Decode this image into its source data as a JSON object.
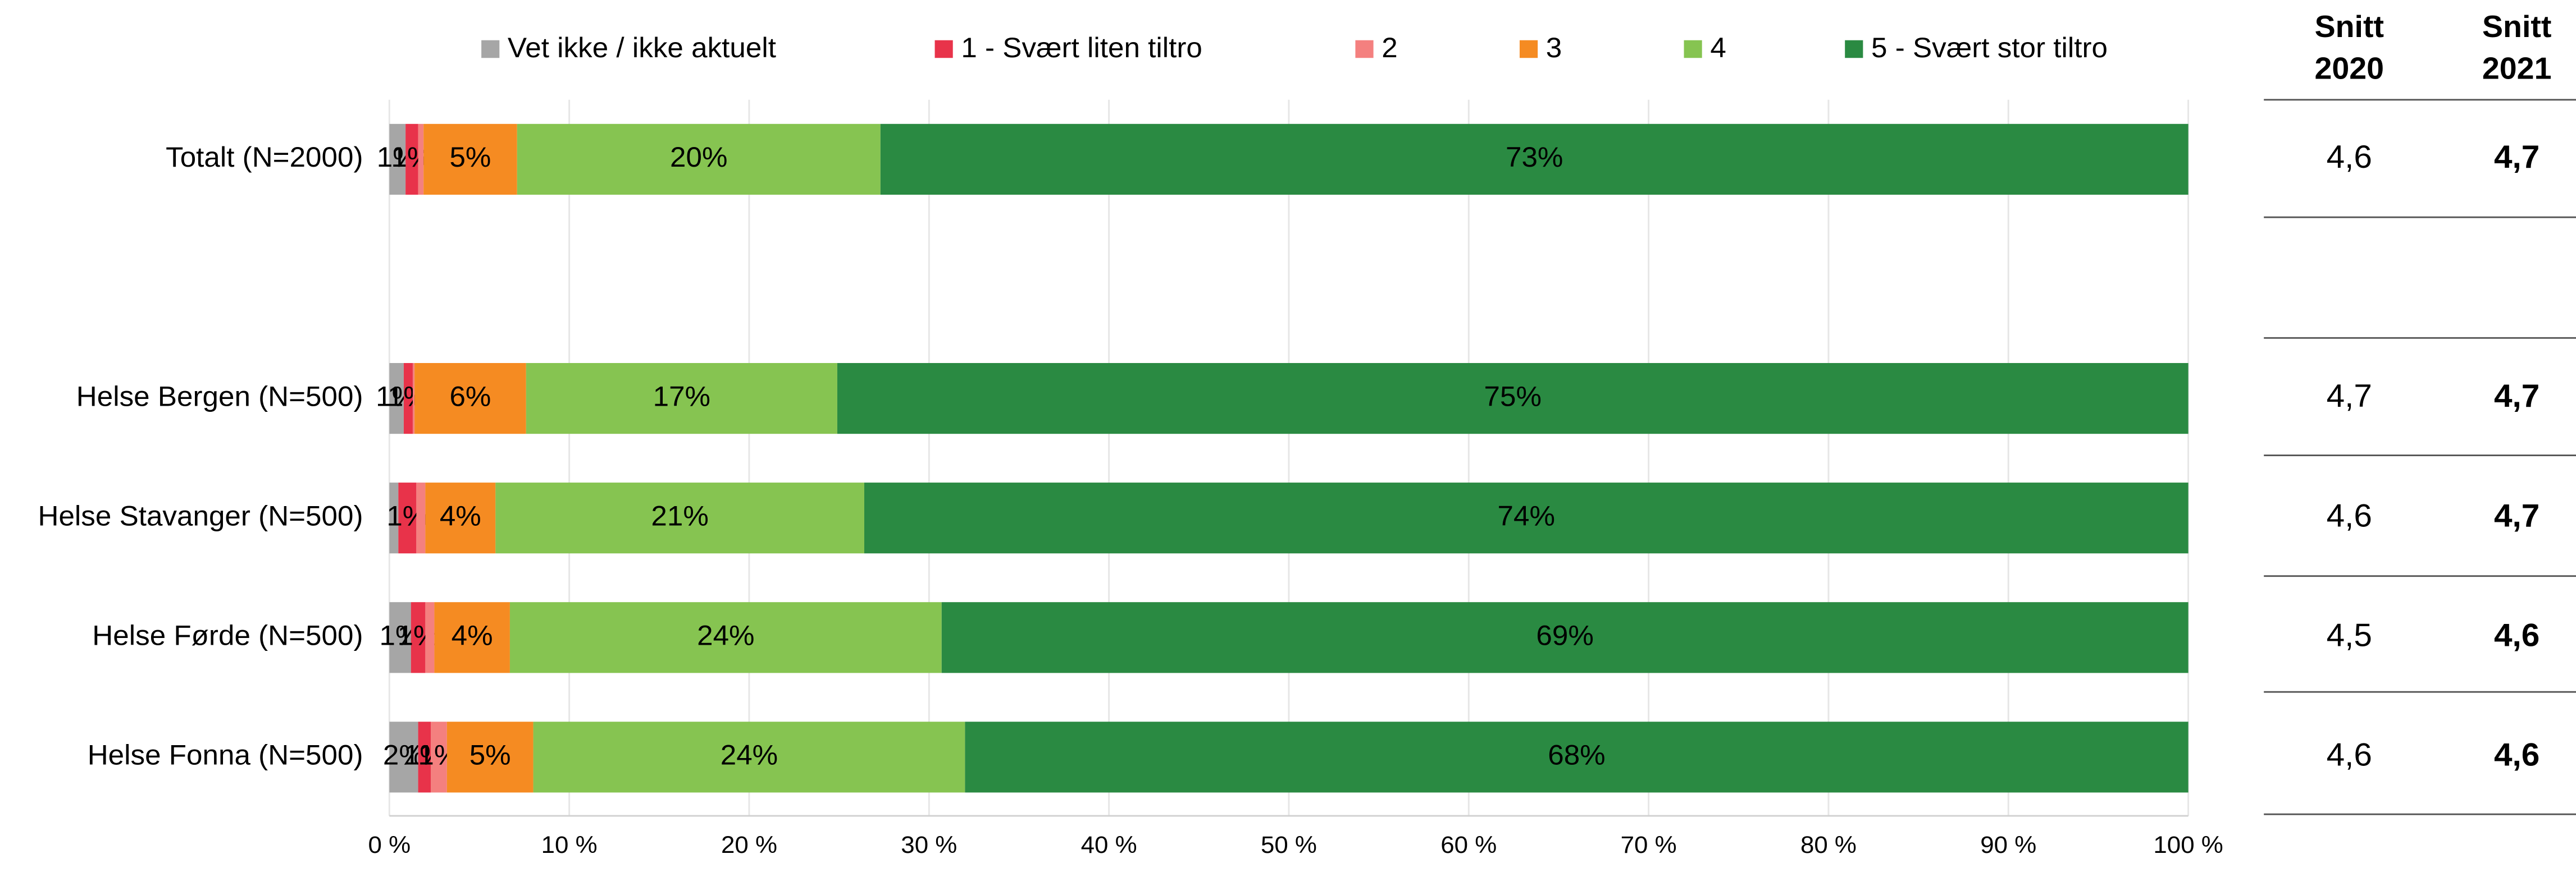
{
  "chart_data": {
    "type": "stacked_barh",
    "categories": [
      "Totalt (N=2000)",
      null,
      "Helse Bergen (N=500)",
      "Helse Stavanger (N=500)",
      "Helse Førde (N=500)",
      "Helse Fonna (N=500)"
    ],
    "series": [
      {
        "name": "Vet ikke / ikke aktuelt",
        "color": "#a6a6a6",
        "values": [
          0.9,
          null,
          0.8,
          0.5,
          1.2,
          1.6
        ],
        "value_labels": [
          "1%",
          null,
          "1%",
          null,
          "1%",
          "2%"
        ]
      },
      {
        "name": "1 - Svært liten tiltro",
        "color": "#e8334a",
        "values": [
          0.7,
          null,
          0.5,
          1.0,
          0.8,
          0.7
        ],
        "value_labels": [
          "1%",
          null,
          "1%",
          "1%",
          "1%",
          "1%"
        ]
      },
      {
        "name": "2",
        "color": "#f4807f",
        "values": [
          0.3,
          null,
          0.1,
          0.5,
          0.5,
          0.9
        ],
        "value_labels": [
          null,
          null,
          null,
          null,
          null,
          "1%"
        ]
      },
      {
        "name": "3",
        "color": "#f58b22",
        "values": [
          5.2,
          null,
          6.2,
          3.9,
          4.2,
          4.8
        ],
        "value_labels": [
          "5%",
          null,
          "6%",
          "4%",
          "4%",
          "5%"
        ]
      },
      {
        "name": "4",
        "color": "#86c451",
        "values": [
          20.2,
          null,
          17.3,
          20.5,
          24.0,
          24.0
        ],
        "value_labels": [
          "20%",
          null,
          "17%",
          "21%",
          "24%",
          "24%"
        ]
      },
      {
        "name": "5 - Svært stor tiltro",
        "color": "#2a8a42",
        "values": [
          72.7,
          null,
          75.1,
          73.6,
          69.3,
          68.0
        ],
        "value_labels": [
          "73%",
          null,
          "75%",
          "74%",
          "69%",
          "68%"
        ]
      }
    ],
    "xlim": [
      0,
      100
    ],
    "xticks": [
      {
        "value": 0,
        "label": "0 %"
      },
      {
        "value": 10,
        "label": "10 %"
      },
      {
        "value": 20,
        "label": "20 %"
      },
      {
        "value": 30,
        "label": "30 %"
      },
      {
        "value": 40,
        "label": "40 %"
      },
      {
        "value": 50,
        "label": "50 %"
      },
      {
        "value": 60,
        "label": "60 %"
      },
      {
        "value": 70,
        "label": "70 %"
      },
      {
        "value": 80,
        "label": "80 %"
      },
      {
        "value": 90,
        "label": "90 %"
      },
      {
        "value": 100,
        "label": "100 %"
      }
    ],
    "grid": true,
    "legend": "top"
  },
  "table": {
    "headers": [
      [
        "Snitt",
        "2020"
      ],
      [
        "Snitt",
        "2021"
      ]
    ],
    "rows": [
      [
        "4,6",
        "4,7"
      ],
      null,
      [
        "4,7",
        "4,7"
      ],
      [
        "4,6",
        "4,7"
      ],
      [
        "4,5",
        "4,6"
      ],
      [
        "4,6",
        "4,6"
      ]
    ]
  }
}
